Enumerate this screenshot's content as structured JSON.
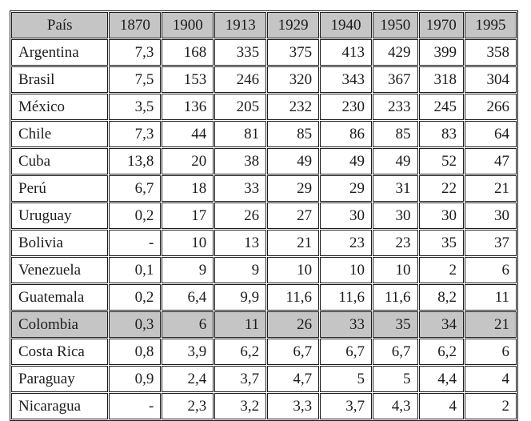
{
  "colors": {
    "header_bg": "#c5c5c5",
    "highlight_bg": "#c5c5c5",
    "border": "#1c1c1c",
    "text": "#1c1c1c",
    "page_bg": "#ffffff"
  },
  "table": {
    "columns": [
      "País",
      "1870",
      "1900",
      "1913",
      "1929",
      "1940",
      "1950",
      "1970",
      "1995"
    ],
    "rows": [
      {
        "country": "Argentina",
        "values": [
          "7,3",
          "168",
          "335",
          "375",
          "413",
          "429",
          "399",
          "358"
        ],
        "highlighted": false
      },
      {
        "country": "Brasil",
        "values": [
          "7,5",
          "153",
          "246",
          "320",
          "343",
          "367",
          "318",
          "304"
        ],
        "highlighted": false
      },
      {
        "country": "México",
        "values": [
          "3,5",
          "136",
          "205",
          "232",
          "230",
          "233",
          "245",
          "266"
        ],
        "highlighted": false
      },
      {
        "country": "Chile",
        "values": [
          "7,3",
          "44",
          "81",
          "85",
          "86",
          "85",
          "83",
          "64"
        ],
        "highlighted": false
      },
      {
        "country": "Cuba",
        "values": [
          "13,8",
          "20",
          "38",
          "49",
          "49",
          "49",
          "52",
          "47"
        ],
        "highlighted": false
      },
      {
        "country": "Perú",
        "values": [
          "6,7",
          "18",
          "33",
          "29",
          "29",
          "31",
          "22",
          "21"
        ],
        "highlighted": false
      },
      {
        "country": "Uruguay",
        "values": [
          "0,2",
          "17",
          "26",
          "27",
          "30",
          "30",
          "30",
          "30"
        ],
        "highlighted": false
      },
      {
        "country": "Bolivia",
        "values": [
          "-",
          "10",
          "13",
          "21",
          "23",
          "23",
          "35",
          "37"
        ],
        "highlighted": false
      },
      {
        "country": "Venezuela",
        "values": [
          "0,1",
          "9",
          "9",
          "10",
          "10",
          "10",
          "2",
          "6"
        ],
        "highlighted": false
      },
      {
        "country": "Guatemala",
        "values": [
          "0,2",
          "6,4",
          "9,9",
          "11,6",
          "11,6",
          "11,6",
          "8,2",
          "11"
        ],
        "highlighted": false
      },
      {
        "country": "Colombia",
        "values": [
          "0,3",
          "6",
          "11",
          "26",
          "33",
          "35",
          "34",
          "21"
        ],
        "highlighted": true
      },
      {
        "country": "Costa Rica",
        "values": [
          "0,8",
          "3,9",
          "6,2",
          "6,7",
          "6,7",
          "6,7",
          "6,2",
          "6"
        ],
        "highlighted": false
      },
      {
        "country": "Paraguay",
        "values": [
          "0,9",
          "2,4",
          "3,7",
          "4,7",
          "5",
          "5",
          "4,4",
          "4"
        ],
        "highlighted": false
      },
      {
        "country": "Nicaragua",
        "values": [
          "-",
          "2,3",
          "3,2",
          "3,3",
          "3,7",
          "4,3",
          "4",
          "2"
        ],
        "highlighted": false
      }
    ]
  }
}
